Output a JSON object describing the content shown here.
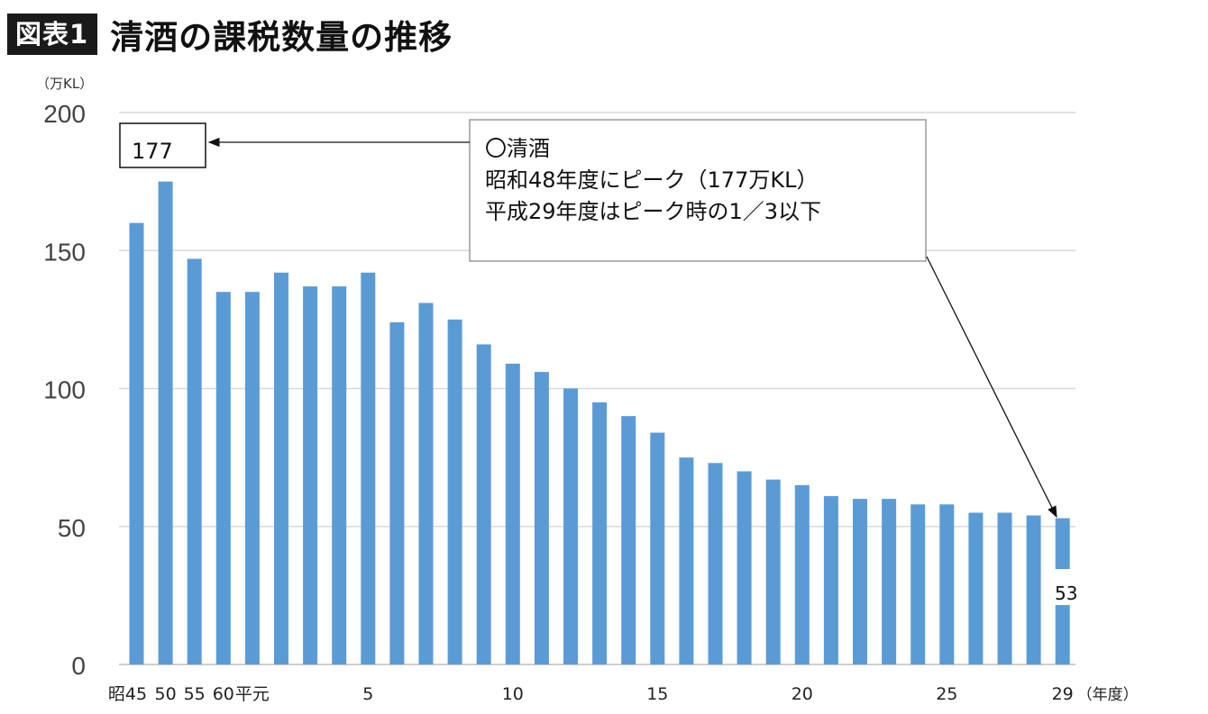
{
  "header": {
    "badge": "図表1",
    "title": "清酒の課税数量の推移"
  },
  "chart_data": {
    "type": "bar",
    "y_unit": "（万KL）",
    "x_unit": "（年度）",
    "ylim": [
      0,
      200
    ],
    "yticks": [
      0,
      50,
      100,
      150,
      200
    ],
    "grid": true,
    "color": "#5b9bd5",
    "x_tick_labels": [
      {
        "index": 0,
        "label": "昭45"
      },
      {
        "index": 1,
        "label": "50"
      },
      {
        "index": 2,
        "label": "55"
      },
      {
        "index": 3,
        "label": "60"
      },
      {
        "index": 4,
        "label": "平元"
      },
      {
        "index": 8,
        "label": "5"
      },
      {
        "index": 13,
        "label": "10"
      },
      {
        "index": 18,
        "label": "15"
      },
      {
        "index": 23,
        "label": "20"
      },
      {
        "index": 28,
        "label": "25"
      },
      {
        "index": 32,
        "label": "29"
      }
    ],
    "values": [
      160,
      175,
      147,
      135,
      135,
      142,
      137,
      137,
      142,
      124,
      131,
      125,
      116,
      109,
      106,
      100,
      95,
      90,
      84,
      75,
      73,
      70,
      67,
      65,
      61,
      60,
      60,
      58,
      58,
      55,
      55,
      54,
      53
    ],
    "annotations": {
      "peak_label": "177",
      "last_label": "53",
      "callout_lines": [
        "〇清酒",
        "昭和48年度にピーク（177万KL）",
        "平成29年度はピーク時の1／3以下"
      ]
    }
  }
}
